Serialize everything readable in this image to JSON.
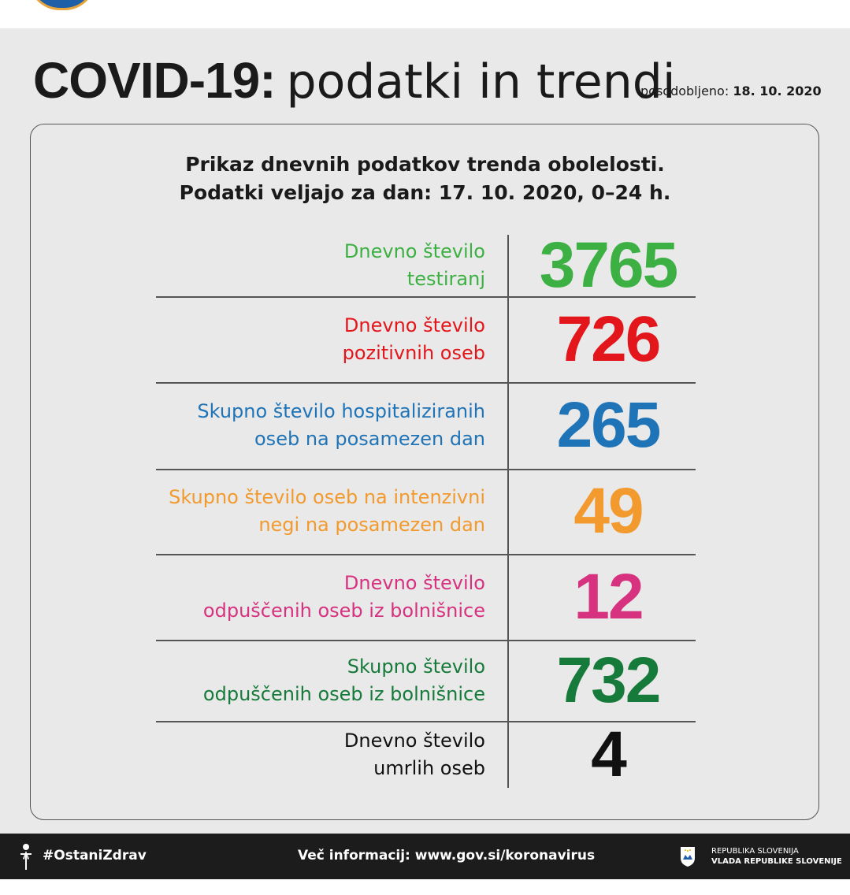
{
  "header": {
    "title_bold": "COVID-19:",
    "title_light": "podatki in trendi",
    "updated_label": "posodobljeno:",
    "updated_date": "18. 10. 2020"
  },
  "subtitle": {
    "line1": "Prikaz dnevnih podatkov trenda obolelosti.",
    "line2": "Podatki veljajo za dan: 17. 10. 2020, 0–24 h."
  },
  "stats": [
    {
      "line1": "Dnevno število",
      "line2": "testiranj",
      "value": "3765",
      "color": "#3cb043"
    },
    {
      "line1": "Dnevno število",
      "line2": "pozitivnih oseb",
      "value": "726",
      "color": "#e3161b"
    },
    {
      "line1": "Skupno število hospitaliziranih",
      "line2": "oseb na posamezen dan",
      "value": "265",
      "color": "#1f74b8"
    },
    {
      "line1": "Skupno število oseb na intenzivni",
      "line2": "negi na posamezen dan",
      "value": "49",
      "color": "#f29a2e"
    },
    {
      "line1": "Dnevno število",
      "line2": "odpuščenih oseb iz bolnišnice",
      "value": "12",
      "color": "#d6327f"
    },
    {
      "line1": "Skupno število",
      "line2": "odpuščenih oseb iz bolnišnice",
      "value": "732",
      "color": "#167a3a"
    },
    {
      "line1": "Dnevno število",
      "line2": "umrlih oseb",
      "value": "4",
      "color": "#111111"
    }
  ],
  "footer": {
    "hashtag": "#OstaniZdrav",
    "more_info": "Več informacij: www.gov.si/koronavirus",
    "gov_line1": "REPUBLIKA SLOVENIJA",
    "gov_line2": "VLADA REPUBLIKE SLOVENIJE",
    "icons": [
      "person-icon",
      "coat-of-arms-icon"
    ]
  }
}
